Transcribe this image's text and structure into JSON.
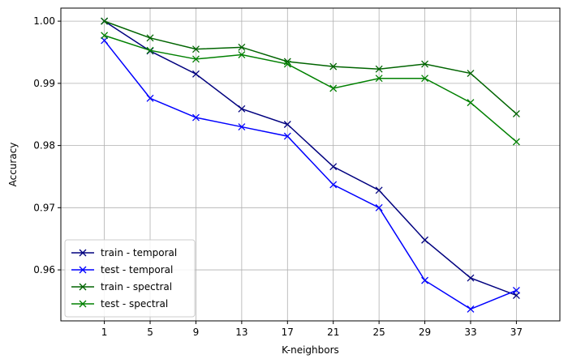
{
  "chart_data": {
    "type": "line",
    "title": "",
    "xlabel": "K-neighbors",
    "ylabel": "Accuracy",
    "x": [
      1,
      5,
      9,
      13,
      17,
      21,
      25,
      29,
      33,
      37
    ],
    "xlim": [
      -2.8,
      40.8
    ],
    "ylim": [
      0.9518,
      1.0021
    ],
    "xticks": [
      "1",
      "5",
      "9",
      "13",
      "17",
      "21",
      "25",
      "29",
      "33",
      "37"
    ],
    "yticks": [
      0.96,
      0.97,
      0.98,
      0.99,
      1.0
    ],
    "ytick_labels": [
      "0.96",
      "0.97",
      "0.98",
      "0.99",
      "1.00"
    ],
    "grid": true,
    "legend_position": "lower-left",
    "marker": "x",
    "series": [
      {
        "name": "train - temporal",
        "color": "#00007f",
        "values": [
          1.0,
          0.9952,
          0.9915,
          0.9859,
          0.9834,
          0.9766,
          0.9728,
          0.9648,
          0.9587,
          0.9559
        ]
      },
      {
        "name": "test - temporal",
        "color": "#0000ff",
        "values": [
          0.9969,
          0.9876,
          0.9845,
          0.983,
          0.9815,
          0.9737,
          0.97,
          0.9583,
          0.9537,
          0.9567
        ]
      },
      {
        "name": "train - spectral",
        "color": "#006400",
        "values": [
          1.0,
          0.9973,
          0.9955,
          0.9958,
          0.9935,
          0.9927,
          0.9923,
          0.9931,
          0.9916,
          0.9851
        ]
      },
      {
        "name": "test - spectral",
        "color": "#008000",
        "values": [
          0.9977,
          0.9953,
          0.9939,
          0.9946,
          0.9931,
          0.9892,
          0.9908,
          0.9908,
          0.9869,
          0.9806
        ]
      }
    ]
  }
}
